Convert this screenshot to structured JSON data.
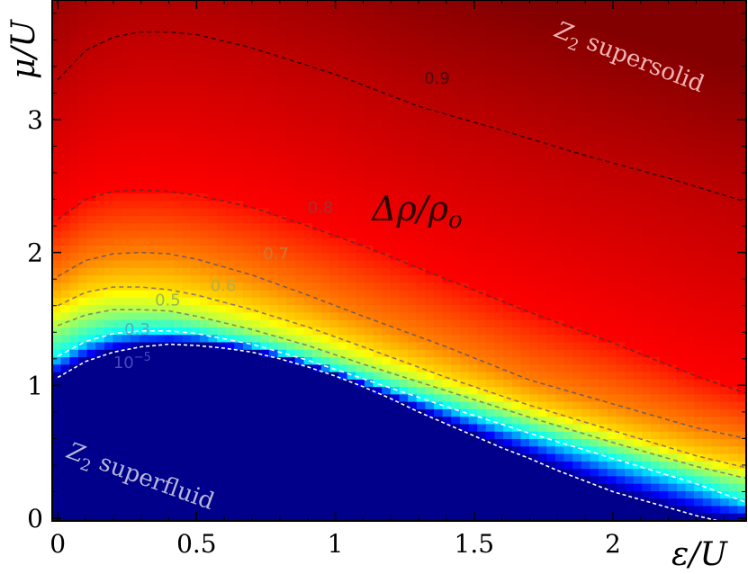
{
  "chart_data": {
    "type": "heatmap",
    "title": "",
    "xlabel": "ε/U",
    "ylabel": "μ/U",
    "xlim": [
      -0.02,
      2.48
    ],
    "ylim": [
      -0.02,
      3.9
    ],
    "x_ticks": [
      0,
      0.5,
      1,
      1.5,
      2
    ],
    "y_ticks": [
      0,
      1,
      2,
      3
    ],
    "x_tick_labels": [
      "0",
      "0.5",
      "1",
      "1.5",
      "2"
    ],
    "y_tick_labels": [
      "0",
      "1",
      "2",
      "3"
    ],
    "colorscale": "jet",
    "grid": false,
    "quantity_label": "Δρ/ρ",
    "quantity_label_sub": "o",
    "region_labels": [
      {
        "main": "Z",
        "sub": "2",
        "text": " supersolid"
      },
      {
        "main": "Z",
        "sub": "2",
        "text": " superfluid"
      }
    ],
    "contours": [
      {
        "level": "0.9",
        "color": "#3a0000",
        "dash": "dashed",
        "points": [
          [
            0.0,
            3.3
          ],
          [
            0.1,
            3.52
          ],
          [
            0.2,
            3.62
          ],
          [
            0.3,
            3.66
          ],
          [
            0.4,
            3.66
          ],
          [
            0.5,
            3.64
          ],
          [
            0.7,
            3.54
          ],
          [
            1.0,
            3.34
          ],
          [
            1.3,
            3.1
          ],
          [
            1.6,
            2.92
          ],
          [
            1.9,
            2.73
          ],
          [
            2.2,
            2.56
          ],
          [
            2.48,
            2.38
          ]
        ]
      },
      {
        "level": "0.8",
        "color": "#7a2424",
        "dash": "dashed",
        "points": [
          [
            0.0,
            2.25
          ],
          [
            0.1,
            2.4
          ],
          [
            0.2,
            2.46
          ],
          [
            0.3,
            2.47
          ],
          [
            0.4,
            2.46
          ],
          [
            0.5,
            2.43
          ],
          [
            0.7,
            2.34
          ],
          [
            0.9,
            2.2
          ],
          [
            1.1,
            2.05
          ],
          [
            1.4,
            1.8
          ],
          [
            1.7,
            1.55
          ],
          [
            2.0,
            1.32
          ],
          [
            2.3,
            1.07
          ],
          [
            2.48,
            0.94
          ]
        ]
      },
      {
        "level": "0.7",
        "color": "#7a5a5a",
        "dash": "dashed",
        "points": [
          [
            0.0,
            1.82
          ],
          [
            0.1,
            1.94
          ],
          [
            0.2,
            1.99
          ],
          [
            0.3,
            2.0
          ],
          [
            0.4,
            1.99
          ],
          [
            0.5,
            1.95
          ],
          [
            0.7,
            1.83
          ],
          [
            0.9,
            1.68
          ],
          [
            1.1,
            1.52
          ],
          [
            1.4,
            1.29
          ],
          [
            1.7,
            1.04
          ],
          [
            2.0,
            0.86
          ],
          [
            2.3,
            0.68
          ],
          [
            2.48,
            0.6
          ]
        ]
      },
      {
        "level": "0.6",
        "color": "#8a7a6a",
        "dash": "dashed",
        "points": [
          [
            0.0,
            1.6
          ],
          [
            0.1,
            1.7
          ],
          [
            0.2,
            1.74
          ],
          [
            0.3,
            1.74
          ],
          [
            0.4,
            1.72
          ],
          [
            0.5,
            1.68
          ],
          [
            0.7,
            1.57
          ],
          [
            0.9,
            1.44
          ],
          [
            1.1,
            1.29
          ],
          [
            1.4,
            1.06
          ],
          [
            1.7,
            0.85
          ],
          [
            2.0,
            0.66
          ],
          [
            2.3,
            0.47
          ],
          [
            2.48,
            0.38
          ]
        ]
      },
      {
        "level": "0.5",
        "color": "#8a8a5a",
        "dash": "dashed",
        "points": [
          [
            0.0,
            1.45
          ],
          [
            0.1,
            1.53
          ],
          [
            0.2,
            1.57
          ],
          [
            0.3,
            1.57
          ],
          [
            0.4,
            1.56
          ],
          [
            0.5,
            1.52
          ],
          [
            0.7,
            1.42
          ],
          [
            0.9,
            1.3
          ],
          [
            1.1,
            1.16
          ],
          [
            1.4,
            0.96
          ],
          [
            1.7,
            0.76
          ],
          [
            2.0,
            0.57
          ],
          [
            2.3,
            0.39
          ],
          [
            2.48,
            0.3
          ]
        ]
      },
      {
        "level": "0.3",
        "color": "#ffffff",
        "dash": "dashed",
        "points": [
          [
            0.0,
            1.22
          ],
          [
            0.1,
            1.33
          ],
          [
            0.2,
            1.39
          ],
          [
            0.3,
            1.41
          ],
          [
            0.4,
            1.41
          ],
          [
            0.5,
            1.39
          ],
          [
            0.7,
            1.31
          ],
          [
            0.9,
            1.19
          ],
          [
            1.1,
            1.05
          ],
          [
            1.4,
            0.84
          ],
          [
            1.7,
            0.64
          ],
          [
            2.0,
            0.45
          ],
          [
            2.3,
            0.26
          ],
          [
            2.48,
            0.12
          ]
        ]
      },
      {
        "level": "10",
        "level_exp": "−5",
        "color": "#ffffff",
        "dash": "dotted",
        "points": [
          [
            0.0,
            1.06
          ],
          [
            0.1,
            1.18
          ],
          [
            0.2,
            1.25
          ],
          [
            0.3,
            1.29
          ],
          [
            0.4,
            1.31
          ],
          [
            0.5,
            1.3
          ],
          [
            0.6,
            1.28
          ],
          [
            0.7,
            1.25
          ],
          [
            0.8,
            1.2
          ],
          [
            0.9,
            1.14
          ],
          [
            1.0,
            1.07
          ],
          [
            1.1,
            0.99
          ],
          [
            1.2,
            0.9
          ],
          [
            1.3,
            0.8
          ],
          [
            1.4,
            0.71
          ],
          [
            1.5,
            0.62
          ],
          [
            1.6,
            0.53
          ],
          [
            1.7,
            0.45
          ],
          [
            1.8,
            0.36
          ],
          [
            1.9,
            0.28
          ],
          [
            2.0,
            0.2
          ],
          [
            2.1,
            0.14
          ],
          [
            2.2,
            0.08
          ],
          [
            2.3,
            0.02
          ],
          [
            2.38,
            -0.02
          ]
        ]
      }
    ]
  }
}
